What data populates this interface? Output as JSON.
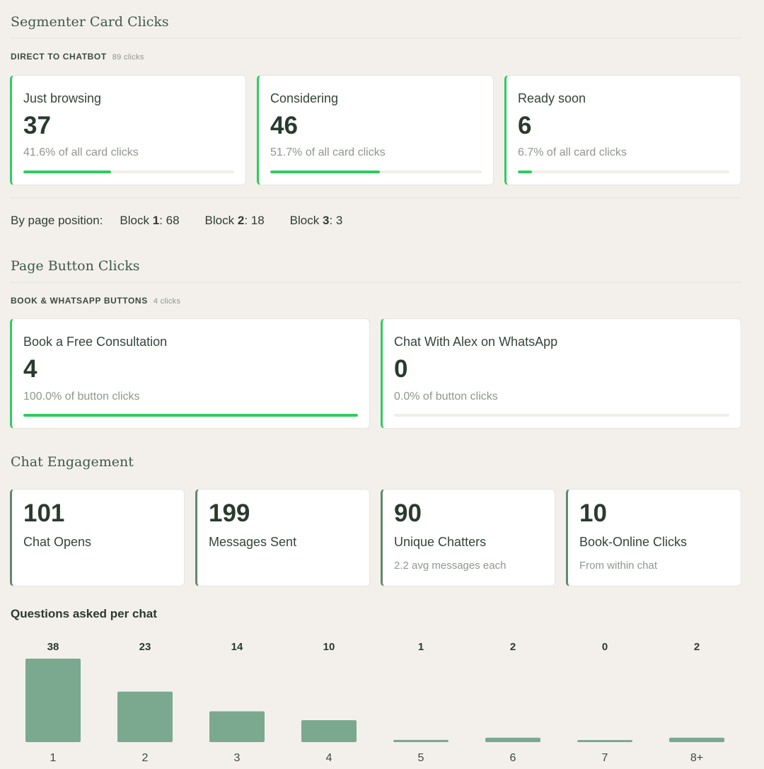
{
  "segmenter": {
    "title": "Segmenter Card Clicks",
    "subhead": "DIRECT TO CHATBOT",
    "subhead_count": "89 clicks",
    "cards": [
      {
        "label": "Just browsing",
        "value": "37",
        "pct_text": "41.6% of all card clicks",
        "fill": 0.416
      },
      {
        "label": "Considering",
        "value": "46",
        "pct_text": "51.7% of all card clicks",
        "fill": 0.517
      },
      {
        "label": "Ready soon",
        "value": "6",
        "pct_text": "6.7% of all card clicks",
        "fill": 0.067
      }
    ],
    "position": {
      "lead": "By page position:",
      "blocks": [
        {
          "prefix": "Block ",
          "num": "1",
          "suffix": ": 68"
        },
        {
          "prefix": "Block ",
          "num": "2",
          "suffix": ": 18"
        },
        {
          "prefix": "Block ",
          "num": "3",
          "suffix": ": 3"
        }
      ]
    }
  },
  "page_buttons": {
    "title": "Page Button Clicks",
    "subhead": "BOOK & WHATSAPP BUTTONS",
    "subhead_count": "4 clicks",
    "cards": [
      {
        "label": "Book a Free Consultation",
        "value": "4",
        "pct_text": "100.0% of button clicks",
        "fill": 1.0
      },
      {
        "label": "Chat With Alex on WhatsApp",
        "value": "0",
        "pct_text": "0.0% of button clicks",
        "fill": 0.0
      }
    ]
  },
  "chat": {
    "title": "Chat Engagement",
    "cards": [
      {
        "value": "101",
        "label": "Chat Opens",
        "sub": ""
      },
      {
        "value": "199",
        "label": "Messages Sent",
        "sub": ""
      },
      {
        "value": "90",
        "label": "Unique Chatters",
        "sub": "2.2 avg messages each"
      },
      {
        "value": "10",
        "label": "Book-Online Clicks",
        "sub": "From within chat"
      }
    ]
  },
  "colors": {
    "accent_green": "#2ecc5f",
    "bar_green": "#7aa98f",
    "neutral_border": "#5e8a6e"
  },
  "chart_data": {
    "type": "bar",
    "title": "Questions asked per chat",
    "categories": [
      "1",
      "2",
      "3",
      "4",
      "5",
      "6",
      "7",
      "8+"
    ],
    "values": [
      38,
      23,
      14,
      10,
      1,
      2,
      0,
      2
    ],
    "ylim": [
      0,
      38
    ],
    "grid": false,
    "data_labels": true
  }
}
